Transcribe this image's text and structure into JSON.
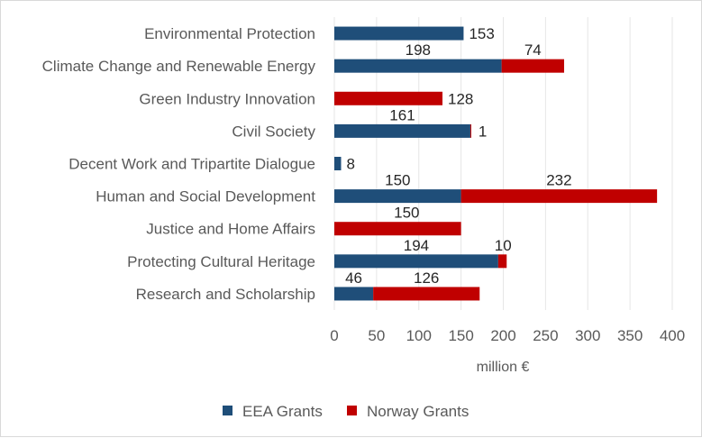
{
  "chart_data": {
    "type": "bar",
    "orientation": "horizontal",
    "stacked": true,
    "title": "",
    "xlabel": "million €",
    "ylabel": "",
    "xlim": [
      0,
      400
    ],
    "x_ticks": [
      0,
      50,
      100,
      150,
      200,
      250,
      300,
      350,
      400
    ],
    "grid": true,
    "legend_position": "bottom",
    "categories": [
      "Environmental Protection",
      "Climate Change and Renewable Energy",
      "Green Industry Innovation",
      "Civil Society",
      "Decent Work and Tripartite Dialogue",
      "Human and Social Development",
      "Justice and Home Affairs",
      "Protecting Cultural Heritage",
      "Research and Scholarship"
    ],
    "series": [
      {
        "name": "EEA Grants",
        "color": "#1f4e79",
        "values": [
          153,
          198,
          0,
          161,
          8,
          150,
          0,
          194,
          46
        ]
      },
      {
        "name": "Norway Grants",
        "color": "#c00000",
        "values": [
          0,
          74,
          128,
          1,
          0,
          232,
          150,
          10,
          126
        ]
      }
    ]
  }
}
